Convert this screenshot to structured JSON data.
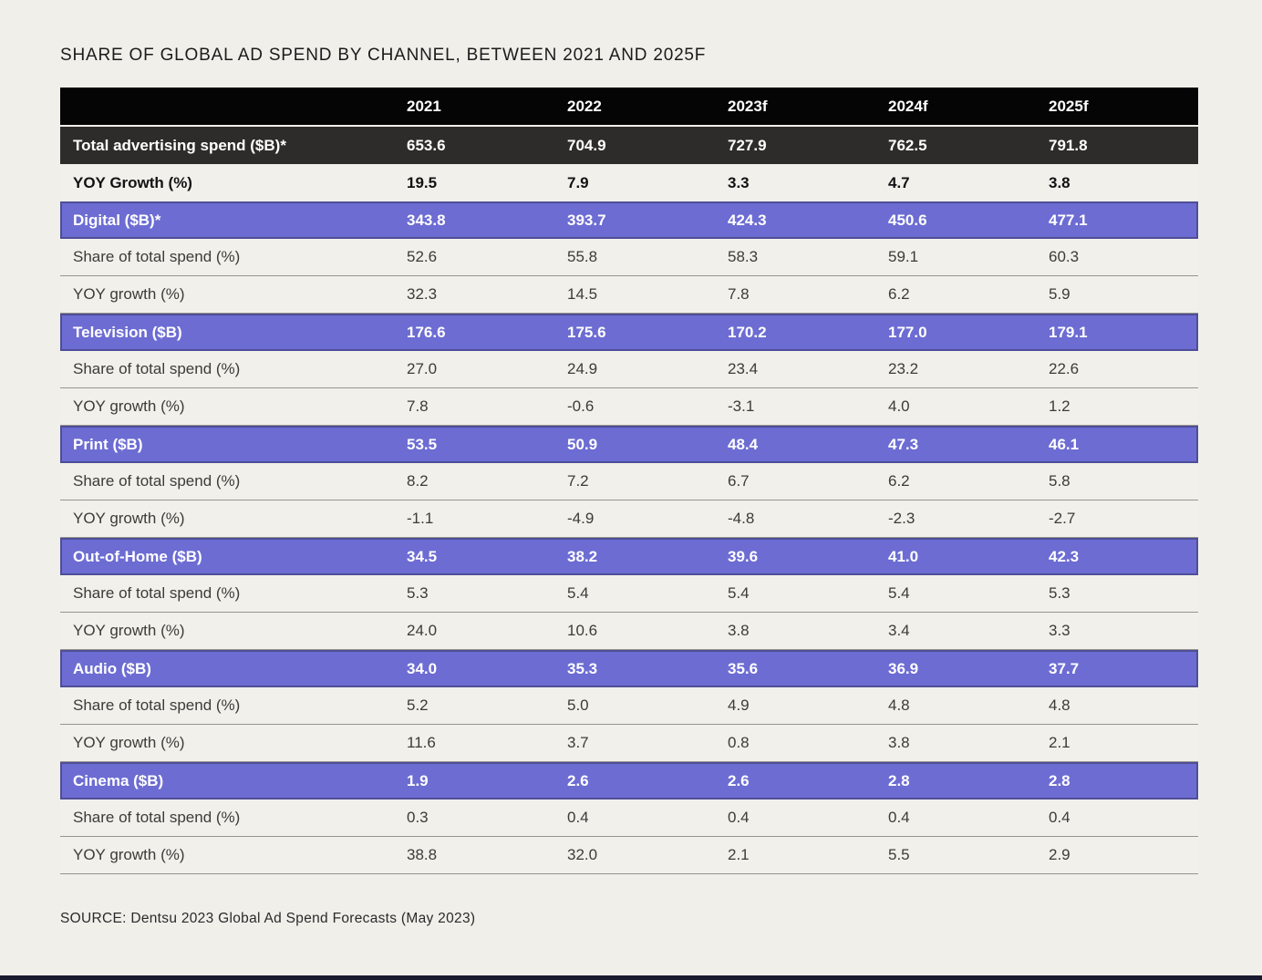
{
  "page": {
    "title": "SHARE OF GLOBAL AD SPEND BY CHANNEL, BETWEEN 2021 AND 2025F",
    "source": "SOURCE: Dentsu 2023 Global Ad Spend Forecasts (May 2023)"
  },
  "colors": {
    "page_background": "#f0efea",
    "header_black": "#050505",
    "dark_row": "#2e2c2b",
    "purple_row": "#6c6cd3",
    "purple_border": "#4e4e97",
    "light_row": "#f1f0eb",
    "separator_line": "#96948e",
    "bottom_bar": "#191930",
    "white_text": "#ffffff",
    "body_text": "#3d3b38"
  },
  "table": {
    "columns": [
      "",
      "2021",
      "2022",
      "2023f",
      "2024f",
      "2025f"
    ],
    "rows": [
      {
        "label": "Total advertising spend ($B)*",
        "style": "dark",
        "values": [
          "653.6",
          "704.9",
          "727.9",
          "762.5",
          "791.8"
        ]
      },
      {
        "label": "YOY Growth (%)",
        "style": "bold-light",
        "values": [
          "19.5",
          "7.9",
          "3.3",
          "4.7",
          "3.8"
        ]
      },
      {
        "label": "Digital ($B)*",
        "style": "purple",
        "values": [
          "343.8",
          "393.7",
          "424.3",
          "450.6",
          "477.1"
        ]
      },
      {
        "label": "Share of total spend (%)",
        "style": "light",
        "values": [
          "52.6",
          "55.8",
          "58.3",
          "59.1",
          "60.3"
        ]
      },
      {
        "label": "YOY growth (%)",
        "style": "light",
        "values": [
          "32.3",
          "14.5",
          "7.8",
          "6.2",
          "5.9"
        ]
      },
      {
        "label": "Television ($B)",
        "style": "purple",
        "values": [
          "176.6",
          "175.6",
          "170.2",
          "177.0",
          "179.1"
        ]
      },
      {
        "label": "Share of total spend (%)",
        "style": "light",
        "values": [
          "27.0",
          "24.9",
          "23.4",
          "23.2",
          "22.6"
        ]
      },
      {
        "label": "YOY growth (%)",
        "style": "light",
        "values": [
          "7.8",
          "-0.6",
          "-3.1",
          "4.0",
          "1.2"
        ]
      },
      {
        "label": "Print ($B)",
        "style": "purple",
        "values": [
          "53.5",
          "50.9",
          "48.4",
          "47.3",
          "46.1"
        ]
      },
      {
        "label": "Share of total spend (%)",
        "style": "light",
        "values": [
          "8.2",
          "7.2",
          "6.7",
          "6.2",
          "5.8"
        ]
      },
      {
        "label": "YOY growth (%)",
        "style": "light",
        "values": [
          "-1.1",
          "-4.9",
          "-4.8",
          "-2.3",
          "-2.7"
        ]
      },
      {
        "label": "Out-of-Home ($B)",
        "style": "purple",
        "values": [
          "34.5",
          "38.2",
          "39.6",
          "41.0",
          "42.3"
        ]
      },
      {
        "label": "Share of total spend (%)",
        "style": "light",
        "values": [
          "5.3",
          "5.4",
          "5.4",
          "5.4",
          "5.3"
        ]
      },
      {
        "label": "YOY growth (%)",
        "style": "light",
        "values": [
          "24.0",
          "10.6",
          "3.8",
          "3.4",
          "3.3"
        ]
      },
      {
        "label": "Audio ($B)",
        "style": "purple",
        "values": [
          "34.0",
          "35.3",
          "35.6",
          "36.9",
          "37.7"
        ]
      },
      {
        "label": "Share of total spend (%)",
        "style": "light",
        "values": [
          "5.2",
          "5.0",
          "4.9",
          "4.8",
          "4.8"
        ]
      },
      {
        "label": "YOY growth (%)",
        "style": "light",
        "values": [
          "11.6",
          "3.7",
          "0.8",
          "3.8",
          "2.1"
        ]
      },
      {
        "label": "Cinema ($B)",
        "style": "purple",
        "values": [
          "1.9",
          "2.6",
          "2.6",
          "2.8",
          "2.8"
        ]
      },
      {
        "label": "Share of total spend (%)",
        "style": "light",
        "values": [
          "0.3",
          "0.4",
          "0.4",
          "0.4",
          "0.4"
        ]
      },
      {
        "label": "YOY growth (%)",
        "style": "light",
        "values": [
          "38.8",
          "32.0",
          "2.1",
          "5.5",
          "2.9"
        ]
      }
    ]
  },
  "chart_data": {
    "type": "table",
    "title": "SHARE OF GLOBAL AD SPEND BY CHANNEL, BETWEEN 2021 AND 2025F",
    "columns": [
      "2021",
      "2022",
      "2023f",
      "2024f",
      "2025f"
    ],
    "total": {
      "spend_billion": [
        653.6,
        704.9,
        727.9,
        762.5,
        791.8
      ],
      "yoy_growth_pct": [
        19.5,
        7.9,
        3.3,
        4.7,
        3.8
      ]
    },
    "channels": [
      {
        "name": "Digital",
        "spend_billion": [
          343.8,
          393.7,
          424.3,
          450.6,
          477.1
        ],
        "share_pct": [
          52.6,
          55.8,
          58.3,
          59.1,
          60.3
        ],
        "yoy_growth_pct": [
          32.3,
          14.5,
          7.8,
          6.2,
          5.9
        ]
      },
      {
        "name": "Television",
        "spend_billion": [
          176.6,
          175.6,
          170.2,
          177.0,
          179.1
        ],
        "share_pct": [
          27.0,
          24.9,
          23.4,
          23.2,
          22.6
        ],
        "yoy_growth_pct": [
          7.8,
          -0.6,
          -3.1,
          4.0,
          1.2
        ]
      },
      {
        "name": "Print",
        "spend_billion": [
          53.5,
          50.9,
          48.4,
          47.3,
          46.1
        ],
        "share_pct": [
          8.2,
          7.2,
          6.7,
          6.2,
          5.8
        ],
        "yoy_growth_pct": [
          -1.1,
          -4.9,
          -4.8,
          -2.3,
          -2.7
        ]
      },
      {
        "name": "Out-of-Home",
        "spend_billion": [
          34.5,
          38.2,
          39.6,
          41.0,
          42.3
        ],
        "share_pct": [
          5.3,
          5.4,
          5.4,
          5.4,
          5.3
        ],
        "yoy_growth_pct": [
          24.0,
          10.6,
          3.8,
          3.4,
          3.3
        ]
      },
      {
        "name": "Audio",
        "spend_billion": [
          34.0,
          35.3,
          35.6,
          36.9,
          37.7
        ],
        "share_pct": [
          5.2,
          5.0,
          4.9,
          4.8,
          4.8
        ],
        "yoy_growth_pct": [
          11.6,
          3.7,
          0.8,
          3.8,
          2.1
        ]
      },
      {
        "name": "Cinema",
        "spend_billion": [
          1.9,
          2.6,
          2.6,
          2.8,
          2.8
        ],
        "share_pct": [
          0.3,
          0.4,
          0.4,
          0.4,
          0.4
        ],
        "yoy_growth_pct": [
          38.8,
          32.0,
          2.1,
          5.5,
          2.9
        ]
      }
    ],
    "source": "SOURCE: Dentsu 2023 Global Ad Spend Forecasts (May 2023)"
  }
}
